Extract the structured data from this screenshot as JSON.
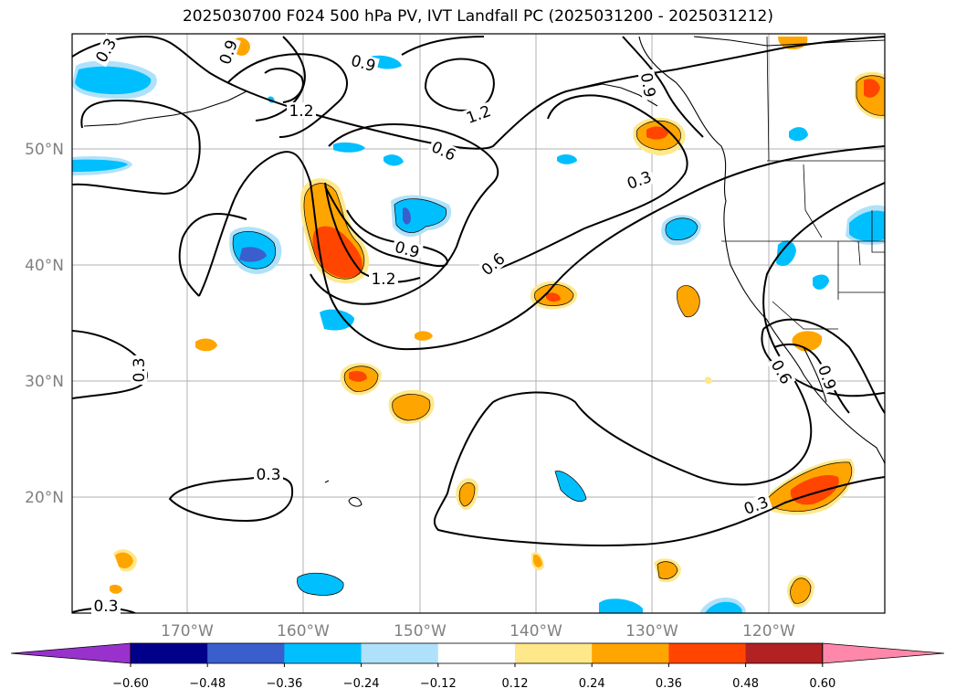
{
  "title": "2025030700 F024 500 hPa PV, IVT Landfall PC (2025031200 - 2025031212)",
  "map": {
    "lon_ticks": [
      "170°W",
      "160°W",
      "150°W",
      "140°W",
      "130°W",
      "120°W"
    ],
    "lat_ticks": [
      "50°N",
      "40°N",
      "30°N",
      "20°N"
    ],
    "extent": {
      "lon_min": -180,
      "lon_max": -110,
      "lat_min": 10,
      "lat_max": 60
    },
    "gridlines": true
  },
  "contours": {
    "labels": [
      "0.3",
      "0.9",
      "0.9",
      "1.2",
      "1.2",
      "0.6",
      "0.9",
      "0.3",
      "0.6",
      "0.9",
      "1.2",
      "0.3",
      "0.3",
      "0.3",
      "0.3",
      "0.6",
      "0.9"
    ]
  },
  "colorbar": {
    "ticks": [
      "−0.60",
      "−0.48",
      "−0.36",
      "−0.24",
      "−0.12",
      "0.12",
      "0.24",
      "0.36",
      "0.48",
      "0.60"
    ],
    "colors": [
      "#9932cc",
      "#00008b",
      "#3a5fcd",
      "#00bfff",
      "#afe2fa",
      "#ffffff",
      "#ffe88a",
      "#ffa500",
      "#ff4500",
      "#b22222",
      "#ff88aa"
    ]
  }
}
